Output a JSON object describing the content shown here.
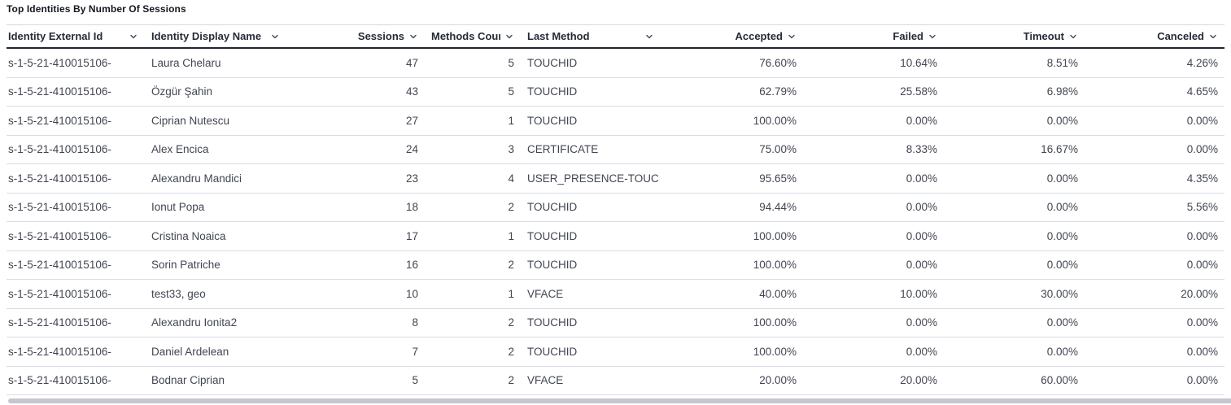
{
  "title": "Top Identities By Number Of Sessions",
  "icons": {
    "sort": "chevron-down"
  },
  "colors": {
    "header_border_dark": "#22262f",
    "row_divider": "#d9dde3",
    "scrollbar_thumb": "#c4c6d0",
    "header_text": "#252b37",
    "body_text": "#414651"
  },
  "table": {
    "columns": [
      {
        "label": "Identity External Id"
      },
      {
        "label": "Identity Display Name"
      },
      {
        "label": "Sessions"
      },
      {
        "label": "Methods Count"
      },
      {
        "label": "Last Method"
      },
      {
        "label": "Accepted"
      },
      {
        "label": "Failed"
      },
      {
        "label": "Timeout"
      },
      {
        "label": "Canceled"
      }
    ],
    "rows": [
      [
        "s-1-5-21-410015106-",
        "Laura Chelaru",
        "47",
        "5",
        "TOUCHID",
        "76.60%",
        "10.64%",
        "8.51%",
        "4.26%"
      ],
      [
        "s-1-5-21-410015106-",
        "Özgür Şahin",
        "43",
        "5",
        "TOUCHID",
        "62.79%",
        "25.58%",
        "6.98%",
        "4.65%"
      ],
      [
        "s-1-5-21-410015106-",
        "Ciprian Nutescu",
        "27",
        "1",
        "TOUCHID",
        "100.00%",
        "0.00%",
        "0.00%",
        "0.00%"
      ],
      [
        "s-1-5-21-410015106-",
        "Alex Encica",
        "24",
        "3",
        "CERTIFICATE",
        "75.00%",
        "8.33%",
        "16.67%",
        "0.00%"
      ],
      [
        "s-1-5-21-410015106-",
        "Alexandru Mandici",
        "23",
        "4",
        "USER_PRESENCE-TOUC",
        "95.65%",
        "0.00%",
        "0.00%",
        "4.35%"
      ],
      [
        "s-1-5-21-410015106-",
        "Ionut Popa",
        "18",
        "2",
        "TOUCHID",
        "94.44%",
        "0.00%",
        "0.00%",
        "5.56%"
      ],
      [
        "s-1-5-21-410015106-",
        "Cristina Noaica",
        "17",
        "1",
        "TOUCHID",
        "100.00%",
        "0.00%",
        "0.00%",
        "0.00%"
      ],
      [
        "s-1-5-21-410015106-",
        "Sorin Patriche",
        "16",
        "2",
        "TOUCHID",
        "100.00%",
        "0.00%",
        "0.00%",
        "0.00%"
      ],
      [
        "s-1-5-21-410015106-",
        "test33, geo",
        "10",
        "1",
        "VFACE",
        "40.00%",
        "10.00%",
        "30.00%",
        "20.00%"
      ],
      [
        "s-1-5-21-410015106-",
        "Alexandru Ionita2",
        "8",
        "2",
        "TOUCHID",
        "100.00%",
        "0.00%",
        "0.00%",
        "0.00%"
      ],
      [
        "s-1-5-21-410015106-",
        "Daniel Ardelean",
        "7",
        "2",
        "TOUCHID",
        "100.00%",
        "0.00%",
        "0.00%",
        "0.00%"
      ],
      [
        "s-1-5-21-410015106-",
        "Bodnar Ciprian",
        "5",
        "2",
        "VFACE",
        "20.00%",
        "20.00%",
        "60.00%",
        "0.00%"
      ]
    ]
  }
}
